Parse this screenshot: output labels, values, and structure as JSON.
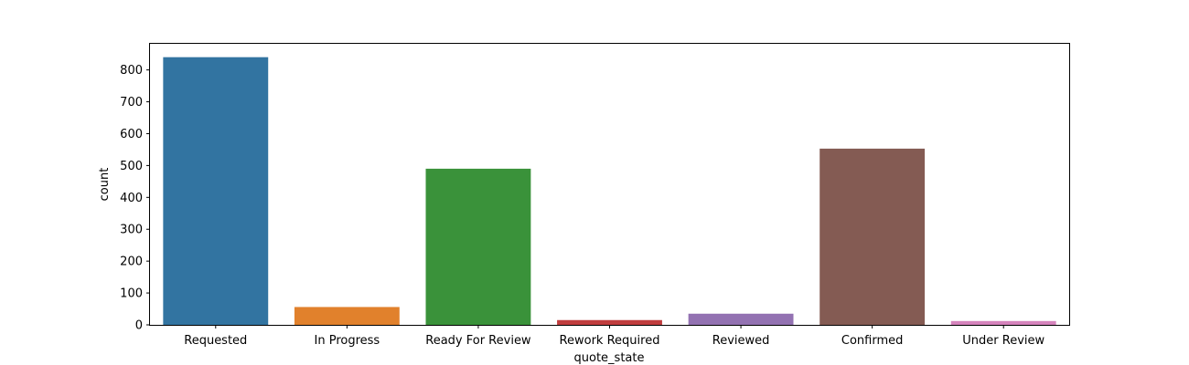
{
  "chart_data": {
    "type": "bar",
    "title": "",
    "xlabel": "quote_state",
    "ylabel": "count",
    "categories": [
      "Requested",
      "In Progress",
      "Ready For Review",
      "Rework Required",
      "Reviewed",
      "Confirmed",
      "Under Review"
    ],
    "values": [
      840,
      56,
      490,
      15,
      35,
      553,
      12
    ],
    "colors": [
      "#3274a1",
      "#e1812c",
      "#3a923a",
      "#c03d3e",
      "#9372b2",
      "#845b53",
      "#d684bd"
    ],
    "ylim": [
      0,
      882
    ],
    "yticks": [
      0,
      100,
      200,
      300,
      400,
      500,
      600,
      700,
      800
    ],
    "grid": false,
    "legend": "none"
  }
}
